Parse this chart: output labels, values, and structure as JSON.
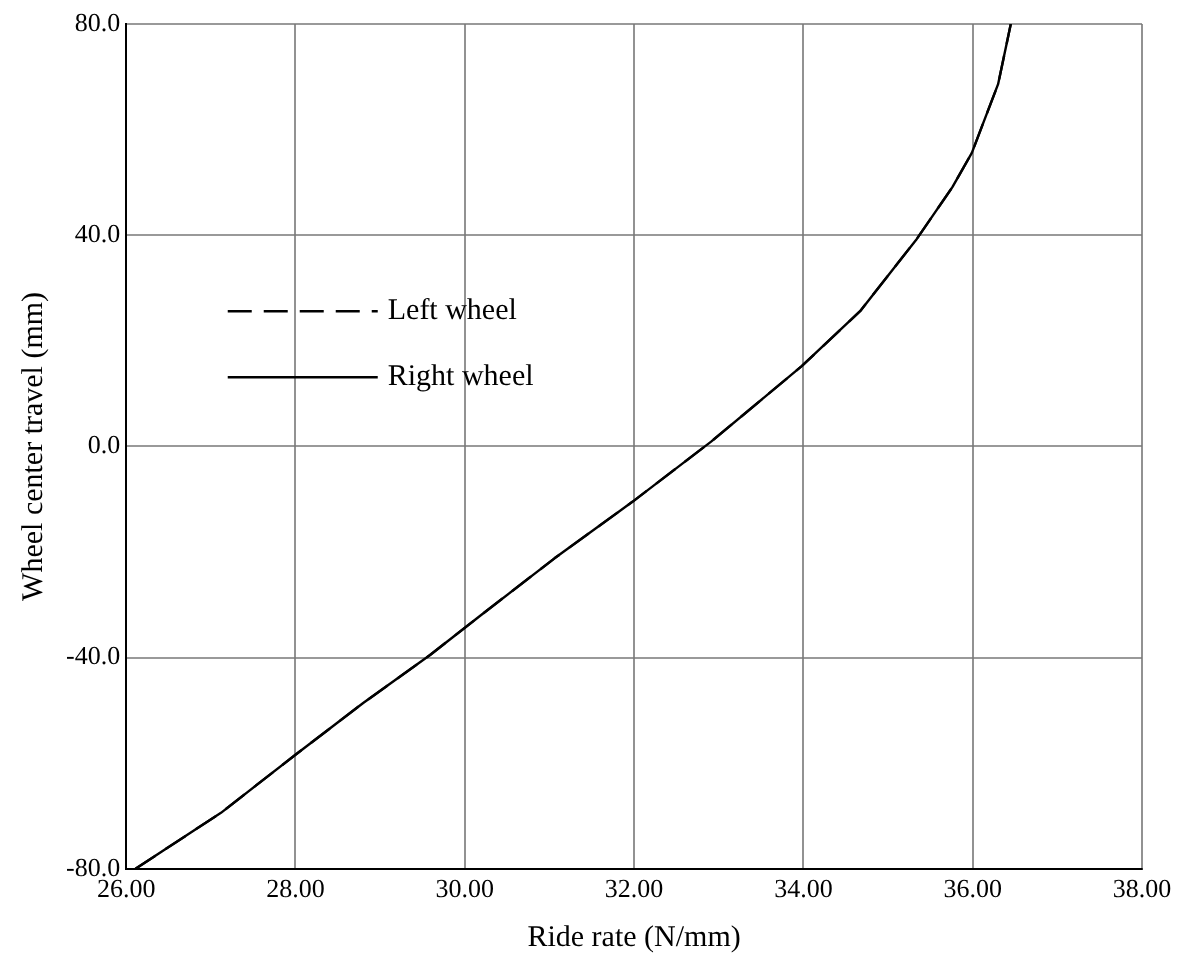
{
  "chart_data": {
    "type": "line",
    "xlabel": "Ride rate (N/mm)",
    "ylabel": "Wheel center travel (mm)",
    "xlim": [
      26,
      38
    ],
    "ylim": [
      -80,
      80
    ],
    "xticks": [
      {
        "value": 26,
        "label": "26.00"
      },
      {
        "value": 28,
        "label": "28.00"
      },
      {
        "value": 30,
        "label": "30.00"
      },
      {
        "value": 32,
        "label": "32.00"
      },
      {
        "value": 34,
        "label": "34.00"
      },
      {
        "value": 36,
        "label": "36.00"
      },
      {
        "value": 38,
        "label": "38.00"
      }
    ],
    "yticks": [
      {
        "value": -80,
        "label": "-80.0"
      },
      {
        "value": -40,
        "label": "-40.0"
      },
      {
        "value": 0,
        "label": "0.0"
      },
      {
        "value": 40,
        "label": "40.0"
      },
      {
        "value": 80,
        "label": "80.0"
      }
    ],
    "x": [
      26.11,
      27.12,
      28.0,
      28.8,
      29.59,
      30.22,
      31.06,
      31.98,
      32.91,
      33.98,
      34.67,
      35.34,
      35.76,
      35.99,
      36.3,
      36.45
    ],
    "series": [
      {
        "name": "Left wheel",
        "color": "#000000",
        "line_style": "dashed",
        "values": [
          -80,
          -69.4,
          -58.4,
          -48.6,
          -39.5,
          -31.6,
          -21.2,
          -10.5,
          0.9,
          15.2,
          25.6,
          39.3,
          49.1,
          55.6,
          68.6,
          80
        ]
      },
      {
        "name": "Right wheel",
        "color": "#000000",
        "line_style": "solid",
        "values": [
          -80,
          -69.4,
          -58.4,
          -48.6,
          -39.5,
          -31.6,
          -21.2,
          -10.5,
          0.9,
          15.2,
          25.6,
          39.3,
          49.1,
          55.6,
          68.6,
          80
        ]
      }
    ],
    "grid": true,
    "legend": "top left",
    "marker": "none"
  }
}
